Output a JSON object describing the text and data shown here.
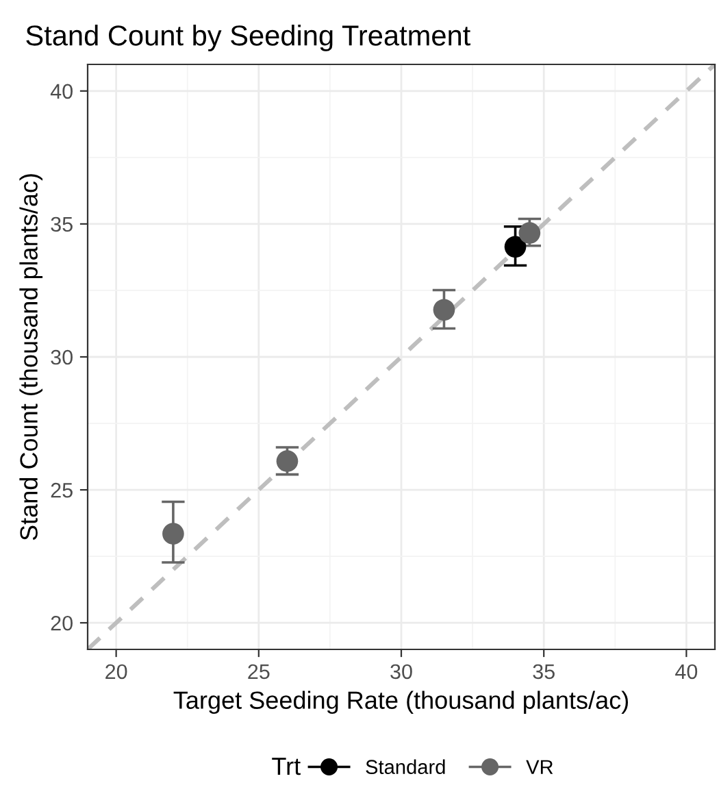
{
  "chart_data": {
    "type": "scatter",
    "title": "Stand Count by Seeding Treatment",
    "xlabel": "Target Seeding Rate (thousand plants/ac)",
    "ylabel": "Stand Count (thousand plants/ac)",
    "legend_title": "Trt",
    "xlim": [
      19,
      41
    ],
    "ylim": [
      19,
      41
    ],
    "xticks": [
      20,
      25,
      30,
      35,
      40
    ],
    "yticks": [
      20,
      25,
      30,
      35,
      40
    ],
    "grid": true,
    "legend": "bottom",
    "marker": "circle",
    "series": [
      {
        "type": "line",
        "color": "#bebebe",
        "line_style": "dashed",
        "marker": "none",
        "x": [
          19,
          41
        ],
        "values": [
          19,
          41
        ]
      },
      {
        "name": "Standard",
        "color": "#000000",
        "x": [
          34
        ],
        "values": [
          34.14
        ],
        "errors": [
          [
            33.44,
            34.9
          ]
        ]
      },
      {
        "name": "VR",
        "color": "#666666",
        "x": [
          22,
          26,
          31.5,
          34.5
        ],
        "values": [
          23.35,
          26.08,
          31.77,
          34.66
        ],
        "errors": [
          [
            22.27,
            24.55
          ],
          [
            25.58,
            26.6
          ],
          [
            31.07,
            32.51
          ],
          [
            34.18,
            35.19
          ]
        ]
      }
    ]
  }
}
